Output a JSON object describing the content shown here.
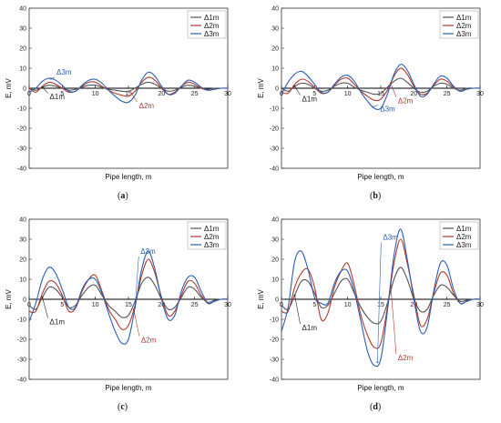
{
  "colors": {
    "d1": "#555555",
    "d2": "#b03a2e",
    "d3": "#2b5fb3",
    "anno_d1": "#222222",
    "anno_d2": "#b03a2e",
    "anno_d3": "#2b5fb3",
    "axis": "#333333"
  },
  "chart_data": [
    {
      "type": "line",
      "panel_label": "a",
      "xlabel": "Pipe length, m",
      "ylabel": "E, mV",
      "xlim": [
        0,
        30
      ],
      "ylim": [
        -40,
        40
      ],
      "xticks": [
        "0",
        "5",
        "10",
        "15",
        "20",
        "25",
        "30"
      ],
      "yticks": [
        "-40",
        "-30",
        "-20",
        "-10",
        "0",
        "10",
        "20",
        "30",
        "40"
      ],
      "legend": {
        "placement": "top-right",
        "entries": [
          "Δ1m",
          "Δ2m",
          "Δ3m"
        ]
      },
      "annotations": [
        {
          "text": "Δ3m",
          "series": "d3",
          "x": 3.3,
          "y": 4.0
        },
        {
          "text": "Δ1m",
          "series": "d1",
          "x": 2.0,
          "y": -1.0
        },
        {
          "text": "Δ2m",
          "series": "d2",
          "x": 15.5,
          "y": -5.5
        }
      ],
      "series": [
        {
          "name": "Δ1m",
          "key": "d1",
          "x": [
            0,
            1,
            2,
            3,
            4,
            5,
            6,
            7,
            8,
            9,
            10,
            11,
            12,
            13,
            14,
            15,
            16,
            17,
            18,
            19,
            20,
            21,
            22,
            23,
            24,
            25,
            26,
            27,
            28,
            29,
            30
          ],
          "y": [
            0,
            -1,
            0.5,
            1.5,
            1,
            0,
            -1,
            -0.5,
            0.5,
            1.5,
            1.5,
            0.5,
            -0.5,
            -1,
            -1.5,
            -1.5,
            0,
            2,
            3,
            2,
            0,
            -1.5,
            -1,
            0.5,
            1.5,
            1,
            0,
            -0.5,
            0,
            0,
            0
          ]
        },
        {
          "name": "Δ2m",
          "key": "d2",
          "x": [
            0,
            1,
            2,
            3,
            4,
            5,
            6,
            7,
            8,
            9,
            10,
            11,
            12,
            13,
            14,
            15,
            16,
            17,
            18,
            19,
            20,
            21,
            22,
            23,
            24,
            25,
            26,
            27,
            28,
            29,
            30
          ],
          "y": [
            0,
            -2,
            1,
            3,
            2,
            0,
            -2,
            -1.5,
            1,
            3,
            3,
            1,
            -1,
            -2.5,
            -3.5,
            -4,
            -1.5,
            3,
            5.5,
            4,
            0,
            -3,
            -2,
            1,
            3,
            2,
            0,
            -1,
            -0.5,
            0,
            0
          ]
        },
        {
          "name": "Δ3m",
          "key": "d3",
          "x": [
            0,
            1,
            2,
            3,
            4,
            5,
            6,
            7,
            8,
            9,
            10,
            11,
            12,
            13,
            14,
            15,
            16,
            17,
            18,
            19,
            20,
            21,
            22,
            23,
            24,
            25,
            26,
            27,
            28,
            29,
            30
          ],
          "y": [
            -2,
            0,
            3.5,
            5,
            4,
            1.5,
            -1.5,
            -1.5,
            1.5,
            4,
            4.5,
            2.5,
            -1,
            -4,
            -6.5,
            -7,
            -3.5,
            4,
            8,
            6,
            1,
            -3,
            -2.5,
            1,
            4,
            3,
            0.5,
            -1,
            -0.5,
            0,
            0
          ]
        }
      ]
    },
    {
      "type": "line",
      "panel_label": "b",
      "xlabel": "Pipe length, m",
      "ylabel": "E, mV",
      "xlim": [
        0,
        30
      ],
      "ylim": [
        -40,
        40
      ],
      "xticks": [
        "0",
        "5",
        "10",
        "15",
        "20",
        "25",
        "30"
      ],
      "yticks": [
        "-40",
        "-30",
        "-20",
        "-10",
        "0",
        "10",
        "20",
        "30",
        "40"
      ],
      "legend": {
        "placement": "top-right",
        "entries": [
          "Δ1m",
          "Δ2m",
          "Δ3m"
        ]
      },
      "annotations": [
        {
          "text": "Δ1m",
          "series": "d1",
          "x": 2.0,
          "y": -2.0
        },
        {
          "text": "Δ3m",
          "series": "d3",
          "x": 13.8,
          "y": -7.0
        },
        {
          "text": "Δ2m",
          "series": "d2",
          "x": 16.5,
          "y": -3.0
        }
      ],
      "series": [
        {
          "name": "Δ1m",
          "key": "d1",
          "x": [
            0,
            1,
            2,
            3,
            4,
            5,
            6,
            7,
            8,
            9,
            10,
            11,
            12,
            13,
            14,
            15,
            16,
            17,
            18,
            19,
            20,
            21,
            22,
            23,
            24,
            25,
            26,
            27,
            28,
            29,
            30
          ],
          "y": [
            0,
            -1.5,
            1,
            2.5,
            2,
            0,
            -1.5,
            -1,
            1,
            2.5,
            2.5,
            0.5,
            -1,
            -2,
            -3,
            -2.5,
            0.5,
            3.5,
            5,
            3,
            0,
            -2,
            -1.5,
            1,
            2.5,
            2,
            0,
            -1,
            0,
            0,
            0
          ]
        },
        {
          "name": "Δ2m",
          "key": "d2",
          "x": [
            0,
            1,
            2,
            3,
            4,
            5,
            6,
            7,
            8,
            9,
            10,
            11,
            12,
            13,
            14,
            15,
            16,
            17,
            18,
            19,
            20,
            21,
            22,
            23,
            24,
            25,
            26,
            27,
            28,
            29,
            30
          ],
          "y": [
            -2,
            -2.5,
            2,
            4.5,
            3.5,
            0.5,
            -2.5,
            -2,
            1.5,
            4.5,
            5,
            2,
            -1.5,
            -4,
            -6,
            -5.5,
            -1,
            6,
            10,
            7,
            1,
            -3,
            -2.5,
            1.5,
            4.5,
            3.5,
            0.5,
            -1.5,
            -0.5,
            0,
            0
          ]
        },
        {
          "name": "Δ3m",
          "key": "d3",
          "x": [
            0,
            1,
            2,
            3,
            4,
            5,
            6,
            7,
            8,
            9,
            10,
            11,
            12,
            13,
            14,
            15,
            16,
            17,
            18,
            19,
            20,
            21,
            22,
            23,
            24,
            25,
            26,
            27,
            28,
            29,
            30
          ],
          "y": [
            -3,
            3,
            7,
            8.5,
            6,
            2,
            -2,
            -2,
            2,
            5.5,
            6.5,
            3.5,
            -2,
            -6.5,
            -10,
            -10,
            -3,
            7,
            12,
            9,
            2,
            -4,
            -3,
            2,
            6,
            5,
            1,
            -1.5,
            -0.5,
            0,
            0
          ]
        }
      ]
    },
    {
      "type": "line",
      "panel_label": "c",
      "xlabel": "Pipe length, m",
      "ylabel": "E, mV",
      "xlim": [
        0,
        30
      ],
      "ylim": [
        -40,
        40
      ],
      "xticks": [
        "0",
        "5",
        "10",
        "15",
        "20",
        "25",
        "30"
      ],
      "yticks": [
        "-40",
        "-30",
        "-20",
        "-10",
        "0",
        "10",
        "20",
        "30",
        "40"
      ],
      "legend": {
        "placement": "top-right",
        "entries": [
          "Δ1m",
          "Δ2m",
          "Δ3m"
        ]
      },
      "annotations": [
        {
          "text": "Δ1m",
          "series": "d1",
          "x": 2.0,
          "y": -8.0
        },
        {
          "text": "Δ3m",
          "series": "d3",
          "x": 16.0,
          "y": 20.0
        },
        {
          "text": "Δ2m",
          "series": "d2",
          "x": 15.8,
          "y": -17.0
        }
      ],
      "series": [
        {
          "name": "Δ1m",
          "key": "d1",
          "x": [
            0,
            1,
            2,
            3,
            4,
            5,
            6,
            7,
            8,
            9,
            10,
            11,
            12,
            13,
            14,
            15,
            16,
            17,
            18,
            19,
            20,
            21,
            22,
            23,
            24,
            25,
            26,
            27,
            28,
            29,
            30
          ],
          "y": [
            -3,
            -5,
            1,
            6,
            5,
            1,
            -4,
            -3,
            2,
            6,
            7,
            2,
            -3,
            -6,
            -9,
            -8,
            -1,
            8,
            11,
            7,
            0,
            -5,
            -4,
            1,
            6,
            5,
            1,
            -1.5,
            -0.5,
            0,
            0
          ]
        },
        {
          "name": "Δ2m",
          "key": "d2",
          "x": [
            0,
            1,
            2,
            3,
            4,
            5,
            6,
            7,
            8,
            9,
            10,
            11,
            12,
            13,
            14,
            15,
            16,
            17,
            18,
            19,
            20,
            21,
            22,
            23,
            24,
            25,
            26,
            27,
            28,
            29,
            30
          ],
          "y": [
            -6,
            -6,
            3,
            9,
            8,
            2,
            -6,
            -4.5,
            4,
            10,
            12,
            4,
            -5,
            -10,
            -15,
            -13,
            -3,
            12,
            20,
            13,
            1,
            -8,
            -6,
            2,
            9,
            8,
            2,
            -2,
            -1,
            0,
            0
          ]
        },
        {
          "name": "Δ3m",
          "key": "d3",
          "x": [
            0,
            1,
            2,
            3,
            4,
            5,
            6,
            7,
            8,
            9,
            10,
            11,
            12,
            13,
            14,
            15,
            16,
            17,
            18,
            19,
            20,
            21,
            22,
            23,
            24,
            25,
            26,
            27,
            28,
            29,
            30
          ],
          "y": [
            -11,
            -2,
            10,
            16,
            13,
            5,
            -4,
            -4,
            5,
            10,
            10,
            3,
            -7,
            -16,
            -22,
            -20,
            -4,
            15,
            24,
            15,
            0,
            -10,
            -8,
            4,
            11,
            11,
            4,
            -2,
            -1,
            0,
            0
          ]
        }
      ]
    },
    {
      "type": "line",
      "panel_label": "d",
      "xlabel": "Pipe length, m",
      "ylabel": "E, mV",
      "xlim": [
        0,
        30
      ],
      "ylim": [
        -40,
        40
      ],
      "xticks": [
        "0",
        "5",
        "10",
        "15",
        "20",
        "25",
        "30"
      ],
      "yticks": [
        "-40",
        "-30",
        "-20",
        "-10",
        "0",
        "10",
        "20",
        "30",
        "40"
      ],
      "legend": {
        "placement": "top-right",
        "entries": [
          "Δ1m",
          "Δ2m",
          "Δ3m"
        ]
      },
      "annotations": [
        {
          "text": "Δ3m",
          "series": "d3",
          "x": 14.5,
          "y": 27.0
        },
        {
          "text": "Δ1m",
          "series": "d1",
          "x": 2.0,
          "y": -11.0
        },
        {
          "text": "Δ2m",
          "series": "d2",
          "x": 16.5,
          "y": -26.0
        }
      ],
      "series": [
        {
          "name": "Δ1m",
          "key": "d1",
          "x": [
            0,
            1,
            2,
            3,
            4,
            5,
            6,
            7,
            8,
            9,
            10,
            11,
            12,
            13,
            14,
            15,
            16,
            17,
            18,
            19,
            20,
            21,
            22,
            23,
            24,
            25,
            26,
            27,
            28,
            29,
            30
          ],
          "y": [
            -3,
            -5,
            2,
            9,
            9,
            3,
            -4,
            -3,
            3,
            9,
            10,
            3,
            -4,
            -9,
            -12,
            -11,
            -2,
            10,
            16,
            10,
            0,
            -6,
            -5,
            2,
            7,
            6,
            2,
            -1,
            -0.5,
            0,
            0
          ]
        },
        {
          "name": "Δ2m",
          "key": "d2",
          "x": [
            0,
            1,
            2,
            3,
            4,
            5,
            6,
            7,
            8,
            9,
            10,
            11,
            12,
            13,
            14,
            15,
            16,
            17,
            18,
            19,
            20,
            21,
            22,
            23,
            24,
            25,
            26,
            27,
            28,
            29,
            30
          ],
          "y": [
            -6,
            -6,
            6,
            13,
            15,
            6,
            -10,
            -7,
            6,
            14,
            18,
            7,
            -8,
            -18,
            -24,
            -22,
            -4,
            18,
            30,
            18,
            2,
            -13,
            -10,
            3,
            13,
            12,
            3,
            -2,
            -1,
            0,
            0
          ]
        },
        {
          "name": "Δ3m",
          "key": "d3",
          "x": [
            0,
            1,
            2,
            3,
            4,
            5,
            6,
            7,
            8,
            9,
            10,
            11,
            12,
            13,
            14,
            15,
            16,
            17,
            18,
            19,
            20,
            21,
            22,
            23,
            24,
            25,
            26,
            27,
            28,
            29,
            30
          ],
          "y": [
            -16,
            -4,
            19,
            24,
            15,
            1,
            -2,
            -2,
            8,
            14,
            14,
            4,
            -11,
            -26,
            -33,
            -30,
            -6,
            22,
            35,
            20,
            0,
            -16,
            -14,
            4,
            18,
            17,
            5,
            -2,
            -1,
            0,
            0
          ]
        }
      ]
    }
  ]
}
